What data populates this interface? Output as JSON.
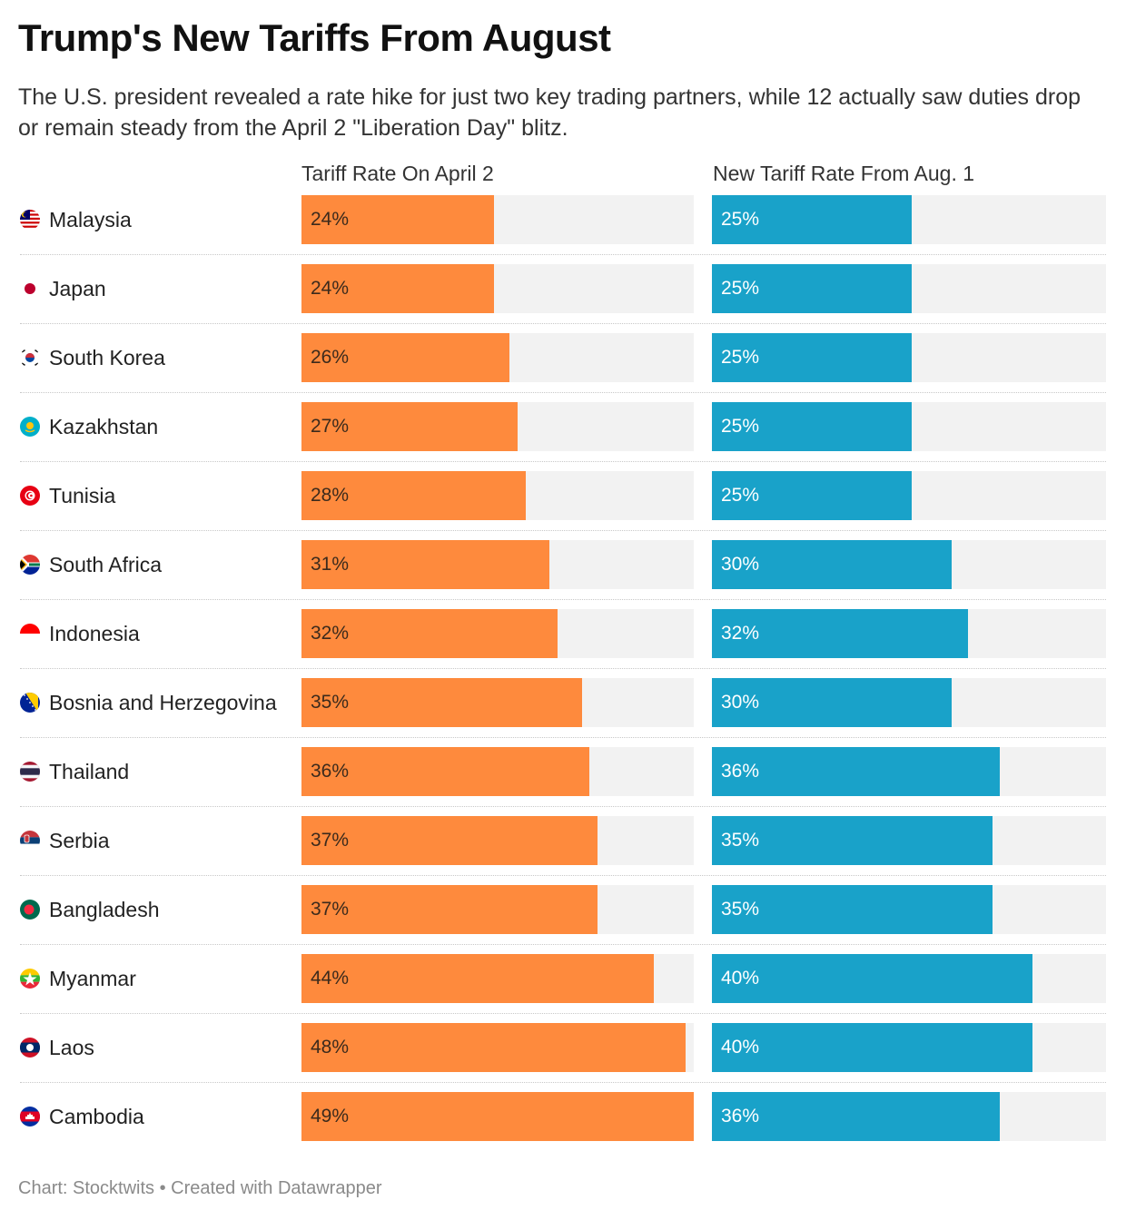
{
  "title": "Trump's New Tariffs From August",
  "subtitle": "The U.S. president revealed a rate hike for just two key trading partners, while 12 actually saw duties drop or remain steady from the April 2 \"Liberation Day\" blitz.",
  "footer": "Chart: Stocktwits • Created with Datawrapper",
  "colors": {
    "april": "#fe8a3d",
    "aug": "#19a2c9",
    "track": "#f2f2f2"
  },
  "chart_data": {
    "type": "bar",
    "scale_max": 49,
    "series": [
      {
        "name": "Tariff Rate On April 2",
        "values": [
          24,
          24,
          26,
          27,
          28,
          31,
          32,
          35,
          36,
          37,
          37,
          44,
          48,
          49
        ]
      },
      {
        "name": "New Tariff Rate From Aug. 1",
        "values": [
          25,
          25,
          25,
          25,
          25,
          30,
          32,
          30,
          36,
          35,
          35,
          40,
          40,
          36
        ]
      }
    ],
    "categories": [
      "Malaysia",
      "Japan",
      "South Korea",
      "Kazakhstan",
      "Tunisia",
      "South Africa",
      "Indonesia",
      "Bosnia and Herzegovina",
      "Thailand",
      "Serbia",
      "Bangladesh",
      "Myanmar",
      "Laos",
      "Cambodia"
    ],
    "flags": [
      "malaysia-flag-icon",
      "japan-flag-icon",
      "south-korea-flag-icon",
      "kazakhstan-flag-icon",
      "tunisia-flag-icon",
      "south-africa-flag-icon",
      "indonesia-flag-icon",
      "bosnia-flag-icon",
      "thailand-flag-icon",
      "serbia-flag-icon",
      "bangladesh-flag-icon",
      "myanmar-flag-icon",
      "laos-flag-icon",
      "cambodia-flag-icon"
    ],
    "value_suffix": "%"
  }
}
